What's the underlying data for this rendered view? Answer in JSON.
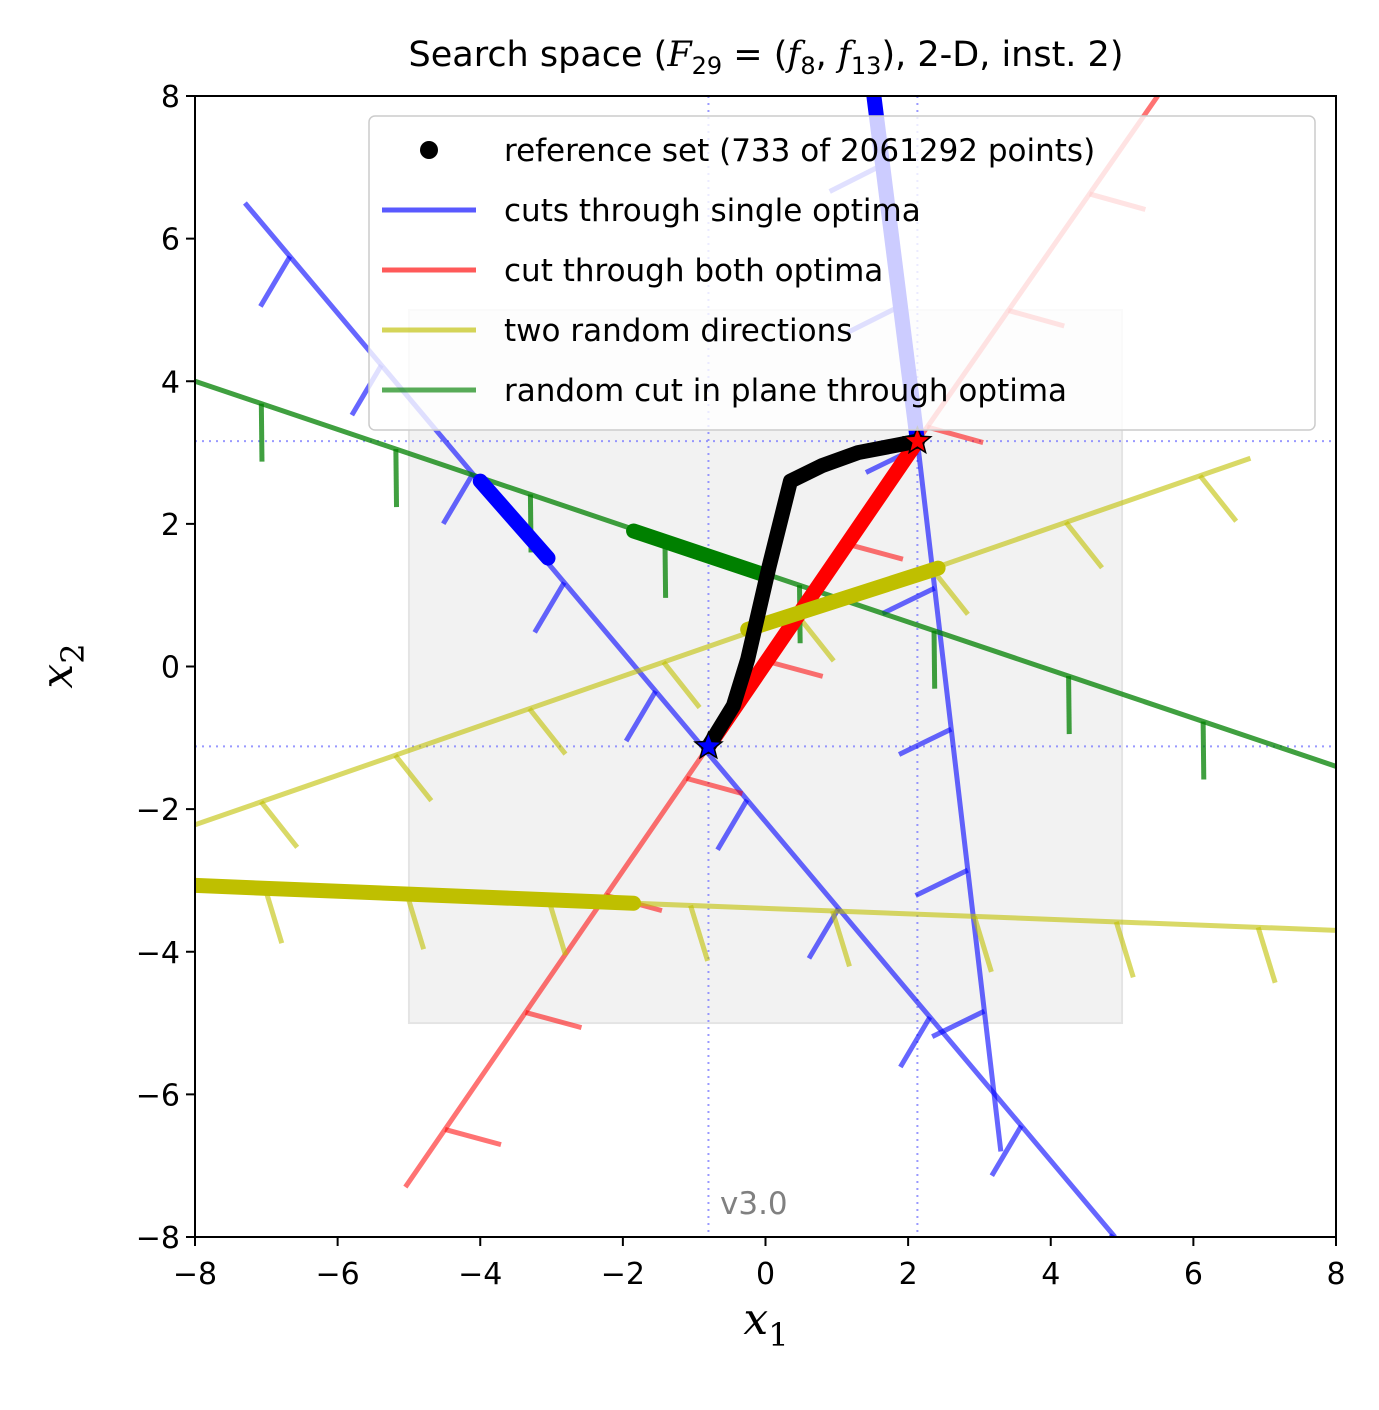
{
  "chart_data": {
    "type": "line",
    "title": {
      "prefix": "Search space (",
      "F": "F",
      "F_sub": "29",
      "mid": " = (",
      "f1": "f",
      "f1_sub": "8",
      "comma": ", ",
      "f2": "f",
      "f2_sub": "13",
      "suffix": "), 2-D, inst. 2)"
    },
    "xlabel": {
      "base": "x",
      "sub": "1"
    },
    "ylabel": {
      "base": "x",
      "sub": "2"
    },
    "xlim": [
      -8,
      8
    ],
    "ylim": [
      -8,
      8
    ],
    "xticks": [
      -8,
      -6,
      -4,
      -2,
      0,
      2,
      4,
      6,
      8
    ],
    "yticks": [
      -8,
      -6,
      -4,
      -2,
      0,
      2,
      4,
      6,
      8
    ],
    "xtick_labels": [
      "−8",
      "−6",
      "−4",
      "−2",
      "0",
      "2",
      "4",
      "6",
      "8"
    ],
    "ytick_labels": [
      "−8",
      "−6",
      "−4",
      "−2",
      "0",
      "2",
      "4",
      "6",
      "8"
    ],
    "region_box": {
      "x": [
        -5,
        5
      ],
      "y": [
        -5,
        5
      ],
      "color": "#f2f2f2"
    },
    "optima": [
      {
        "x": -0.8,
        "y": -1.12,
        "color": "#0000ff",
        "marker": "star"
      },
      {
        "x": 2.13,
        "y": 3.16,
        "color": "#ff0000",
        "marker": "star"
      }
    ],
    "watermark": "v3.0",
    "legend": {
      "position": "top-right",
      "entries": [
        {
          "label": "reference set (733 of 2061292 points)",
          "color": "#000000",
          "style": "dot"
        },
        {
          "label": "cuts through single optima",
          "color": "#0000ff",
          "style": "line"
        },
        {
          "label": "cut through both optima",
          "color": "#ff0000",
          "style": "line"
        },
        {
          "label": "two random directions",
          "color": "#bfbf00",
          "style": "line"
        },
        {
          "label": "random cut in plane through optima",
          "color": "#008000",
          "style": "line"
        }
      ]
    },
    "series": [
      {
        "color": "#0000ff",
        "alpha": 0.6,
        "points": [
          [
            -7.3,
            6.5
          ],
          [
            4.9,
            -8.0
          ]
        ]
      },
      {
        "color": "#0000ff",
        "alpha": 0.6,
        "points": [
          [
            1.5,
            8.0
          ],
          [
            2.13,
            3.16
          ],
          [
            3.3,
            -6.8
          ]
        ]
      },
      {
        "color": "#ff0000",
        "alpha": 0.55,
        "points": [
          [
            -5.05,
            -7.3
          ],
          [
            -0.8,
            -1.12
          ],
          [
            2.13,
            3.16
          ],
          [
            5.5,
            8.0
          ]
        ]
      },
      {
        "color": "#bfbf00",
        "alpha": 0.6,
        "points": [
          [
            -8.0,
            -2.22
          ],
          [
            6.8,
            2.92
          ]
        ]
      },
      {
        "color": "#bfbf00",
        "alpha": 0.6,
        "points": [
          [
            -8.0,
            -3.06
          ],
          [
            -1.85,
            -3.32
          ],
          [
            8.0,
            -3.7
          ]
        ]
      },
      {
        "color": "#008000",
        "alpha": 0.75,
        "points": [
          [
            -8.0,
            4.0
          ],
          [
            8.0,
            -1.4
          ]
        ]
      }
    ],
    "thick_segments": [
      {
        "color": "#0000ff",
        "points": [
          [
            -4.0,
            2.6
          ],
          [
            -3.05,
            1.52
          ]
        ]
      },
      {
        "color": "#0000ff",
        "points": [
          [
            1.52,
            8.0
          ],
          [
            2.13,
            3.16
          ]
        ]
      },
      {
        "color": "#ff0000",
        "points": [
          [
            -0.8,
            -1.12
          ],
          [
            2.13,
            3.16
          ]
        ]
      },
      {
        "color": "#008000",
        "points": [
          [
            -1.85,
            1.9
          ],
          [
            0.0,
            1.28
          ]
        ]
      },
      {
        "color": "#bfbf00",
        "points": [
          [
            -0.25,
            0.52
          ],
          [
            2.42,
            1.38
          ]
        ]
      },
      {
        "color": "#bfbf00",
        "points": [
          [
            -8.0,
            -3.07
          ],
          [
            -1.85,
            -3.32
          ]
        ]
      }
    ],
    "reference_set": [
      [
        -0.8,
        -1.12
      ],
      [
        -0.45,
        -0.55
      ],
      [
        -0.25,
        0.1
      ],
      [
        0.05,
        1.4
      ],
      [
        0.35,
        2.6
      ],
      [
        0.8,
        2.82
      ],
      [
        1.3,
        3.0
      ],
      [
        2.13,
        3.16
      ]
    ]
  }
}
